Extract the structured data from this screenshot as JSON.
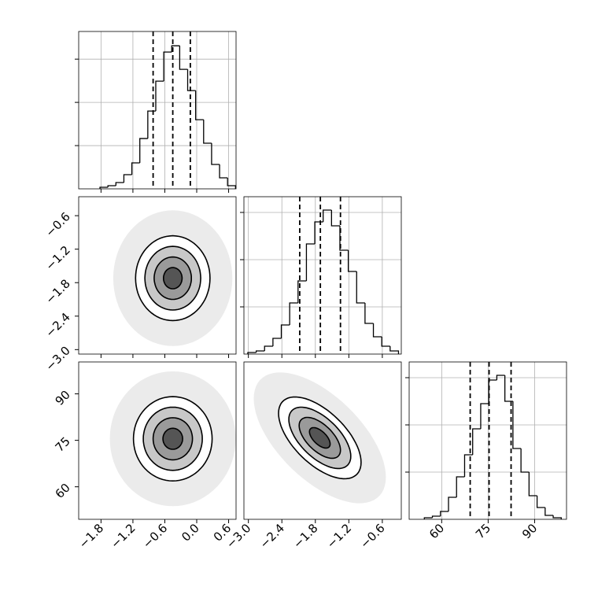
{
  "chart_data": {
    "type": "corner",
    "params": [
      {
        "xlim": [
          -2.22,
          0.74
        ],
        "ticks": [
          {
            "value": -1.8,
            "label": "−1.8"
          },
          {
            "value": -1.2,
            "label": "−1.2"
          },
          {
            "value": -0.6,
            "label": "−0.6"
          },
          {
            "value": 0.0,
            "label": "0.0"
          },
          0.6
        ],
        "hist": {
          "bins": [
            -1.82,
            -1.67,
            -1.52,
            -1.37,
            -1.22,
            -1.07,
            -0.92,
            -0.77,
            -0.62,
            -0.47,
            -0.32,
            -0.17,
            -0.02,
            0.13,
            0.28,
            0.43,
            0.58,
            0.73
          ],
          "counts": [
            36,
            73,
            145,
            327,
            600,
            1164,
            1800,
            2491,
            3164,
            3309,
            2764,
            2273,
            1600,
            1055,
            564,
            255,
            73
          ],
          "ylim": [
            0,
            3640
          ],
          "yticks": [
            1000,
            2000,
            3000
          ]
        },
        "quantiles": [
          -0.82,
          -0.45,
          -0.12
        ]
      },
      {
        "xlim": [
          -3.08,
          -0.26
        ],
        "ticks": [
          {
            "value": -3.0,
            "label": "−3.0"
          },
          {
            "value": -2.4,
            "label": "−2.4"
          },
          {
            "value": -1.8,
            "label": "−1.8"
          },
          {
            "value": -1.2,
            "label": "−1.2"
          },
          {
            "value": -0.6,
            "label": "−0.6"
          }
        ],
        "hist": {
          "bins": [
            -3.01,
            -2.86,
            -2.71,
            -2.56,
            -2.41,
            -2.26,
            -2.11,
            -1.96,
            -1.81,
            -1.66,
            -1.51,
            -1.36,
            -1.21,
            -1.06,
            -0.91,
            -0.76,
            -0.61,
            -0.46,
            -0.31
          ],
          "counts": [
            33,
            67,
            167,
            333,
            617,
            1083,
            1550,
            2333,
            2800,
            3050,
            2717,
            2200,
            1750,
            1083,
            650,
            367,
            167,
            67
          ],
          "ylim": [
            0,
            3333
          ],
          "yticks": [
            1000,
            2000,
            3000
          ]
        },
        "quantiles": [
          -2.08,
          -1.71,
          -1.35
        ]
      },
      {
        "xlim": [
          49.5,
          100.3
        ],
        "ticks": [
          60,
          75,
          90
        ],
        "hist": {
          "bins": [
            54.4,
            57.0,
            59.6,
            62.2,
            64.8,
            67.4,
            70.0,
            72.6,
            75.2,
            77.8,
            80.4,
            83.0,
            85.6,
            88.2,
            90.8,
            93.4,
            96.0,
            98.6
          ],
          "counts": [
            33,
            67,
            167,
            467,
            900,
            1367,
            1917,
            2450,
            2950,
            3050,
            2500,
            1500,
            1000,
            500,
            250,
            83,
            33
          ],
          "ylim": [
            0,
            3333
          ],
          "yticks": [
            1000,
            2000,
            3000
          ]
        },
        "quantiles": [
          69.2,
          75.3,
          82.4
        ]
      }
    ],
    "pairs": [
      {
        "mean": [
          -0.45,
          -1.72
        ],
        "sigma": [
          0.35,
          0.38
        ],
        "rho": 0
      },
      {
        "mean": [
          -0.45,
          75.5
        ],
        "sigma": [
          0.37,
          6.8
        ],
        "rho": 0
      },
      {
        "mean": [
          -1.72,
          75.8
        ],
        "sigma": [
          0.37,
          6.6
        ],
        "rho": -0.6
      }
    ],
    "levels": [
      0.5,
      1,
      1.5,
      2
    ]
  }
}
